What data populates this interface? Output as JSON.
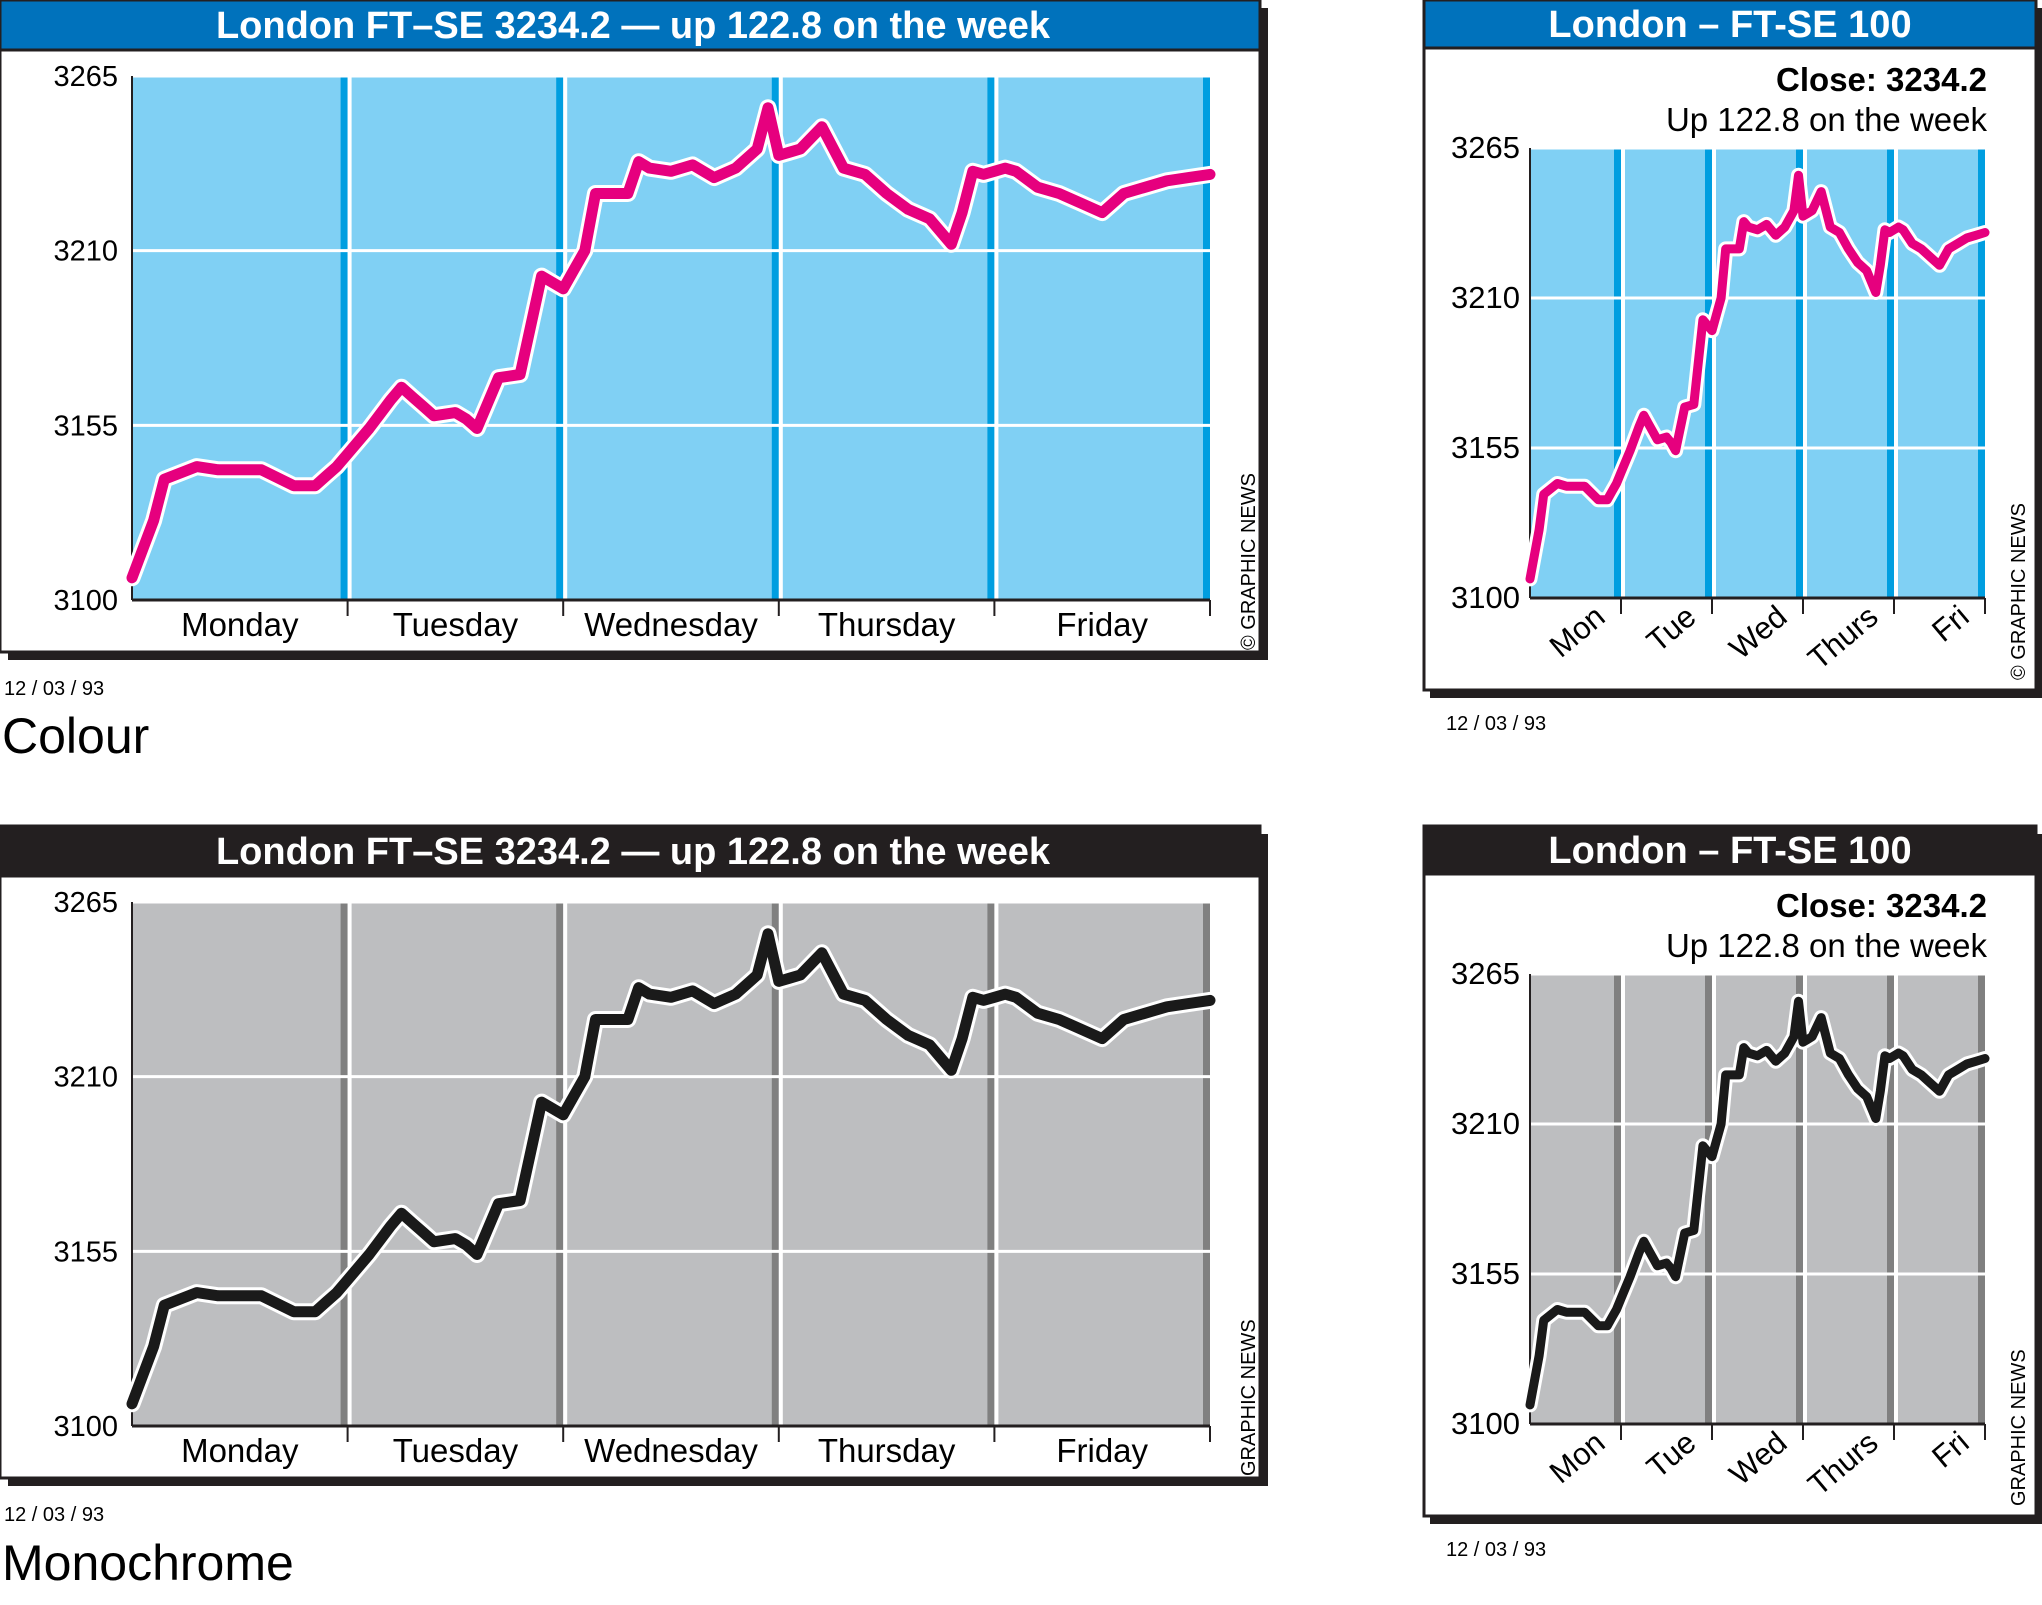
{
  "colors": {
    "colour_panel_bg": "#80d0f4",
    "colour_divider": "#009ee0",
    "colour_line": "#e6007e",
    "colour_title_bar": "#0072bc",
    "mono_panel_bg": "#bdbec0",
    "mono_divider": "#808080",
    "mono_line": "#1a1a1a",
    "mono_title_bar": "#231f20",
    "grid": "#ffffff"
  },
  "captions": {
    "colour": "Colour",
    "monochrome": "Monochrome"
  },
  "charts": {
    "colour_wide": {
      "title": "London FT–SE 3234.2 — up 122.8 on the week",
      "credit": "© GRAPHIC NEWS",
      "date": "12 / 03 /  93"
    },
    "colour_narrow": {
      "title": "London – FT-SE 100",
      "close_label": "Close: 3234.2",
      "up_label": "Up 122.8 on the week",
      "credit": "© GRAPHIC NEWS",
      "date": "12 / 03 /  93"
    },
    "mono_wide": {
      "title": "London FT–SE 3234.2 — up 122.8 on the week",
      "credit": "GRAPHIC NEWS",
      "date": "12 / 03 /  93"
    },
    "mono_narrow": {
      "title": "London – FT-SE 100",
      "close_label": "Close: 3234.2",
      "up_label": "Up 122.8 on the week",
      "credit": "GRAPHIC NEWS",
      "date": "12 / 03 /  93"
    }
  },
  "chart_data": {
    "type": "line",
    "yticks": [
      "3100",
      "3155",
      "3210",
      "3265"
    ],
    "ylim": [
      3100,
      3265
    ],
    "xlim": [
      0,
      5
    ],
    "grid": true,
    "wide_days": [
      "Monday",
      "Tuesday",
      "Wednesday",
      "Thursday",
      "Friday"
    ],
    "narrow_days": [
      "Mon",
      "Tue",
      "Wed",
      "Thurs",
      "Fri"
    ],
    "series": [
      {
        "x": [
          0.0,
          0.1,
          0.15,
          0.3,
          0.4,
          0.5,
          0.6,
          0.75,
          0.8,
          0.85,
          0.9,
          0.95,
          1.0,
          1.1,
          1.2,
          1.25,
          1.3,
          1.35,
          1.4,
          1.5,
          1.55,
          1.6,
          1.7,
          1.8,
          1.9,
          2.0,
          2.05,
          2.1,
          2.15,
          2.3,
          2.35,
          2.4,
          2.5,
          2.55,
          2.6,
          2.7,
          2.8,
          2.9,
          2.95,
          3.0,
          3.05,
          3.1,
          3.2,
          3.3,
          3.4,
          3.5,
          3.6,
          3.7,
          3.8,
          3.85,
          3.9,
          3.95,
          4.0,
          4.05,
          4.1,
          4.2,
          4.3,
          4.4,
          4.5,
          4.6,
          4.7,
          4.8,
          4.9,
          5.0
        ],
        "values": [
          3107,
          3125,
          3138,
          3142,
          3141,
          3141,
          3141,
          3136,
          3136,
          3136,
          3139,
          3142,
          3146,
          3154,
          3163,
          3167,
          3164,
          3161,
          3158,
          3159,
          3157,
          3154,
          3170,
          3171,
          3202,
          3198,
          3204,
          3210,
          3228,
          3228,
          3238,
          3236,
          3235,
          3236,
          3237,
          3233,
          3236,
          3242,
          3255,
          3240,
          3241,
          3242,
          3249,
          3236,
          3234,
          3228,
          3223,
          3220,
          3212,
          3222,
          3235,
          3234,
          3235,
          3236,
          3235,
          3230,
          3228,
          3225,
          3222,
          3228,
          3230,
          3232,
          3233,
          3234
        ]
      }
    ]
  }
}
